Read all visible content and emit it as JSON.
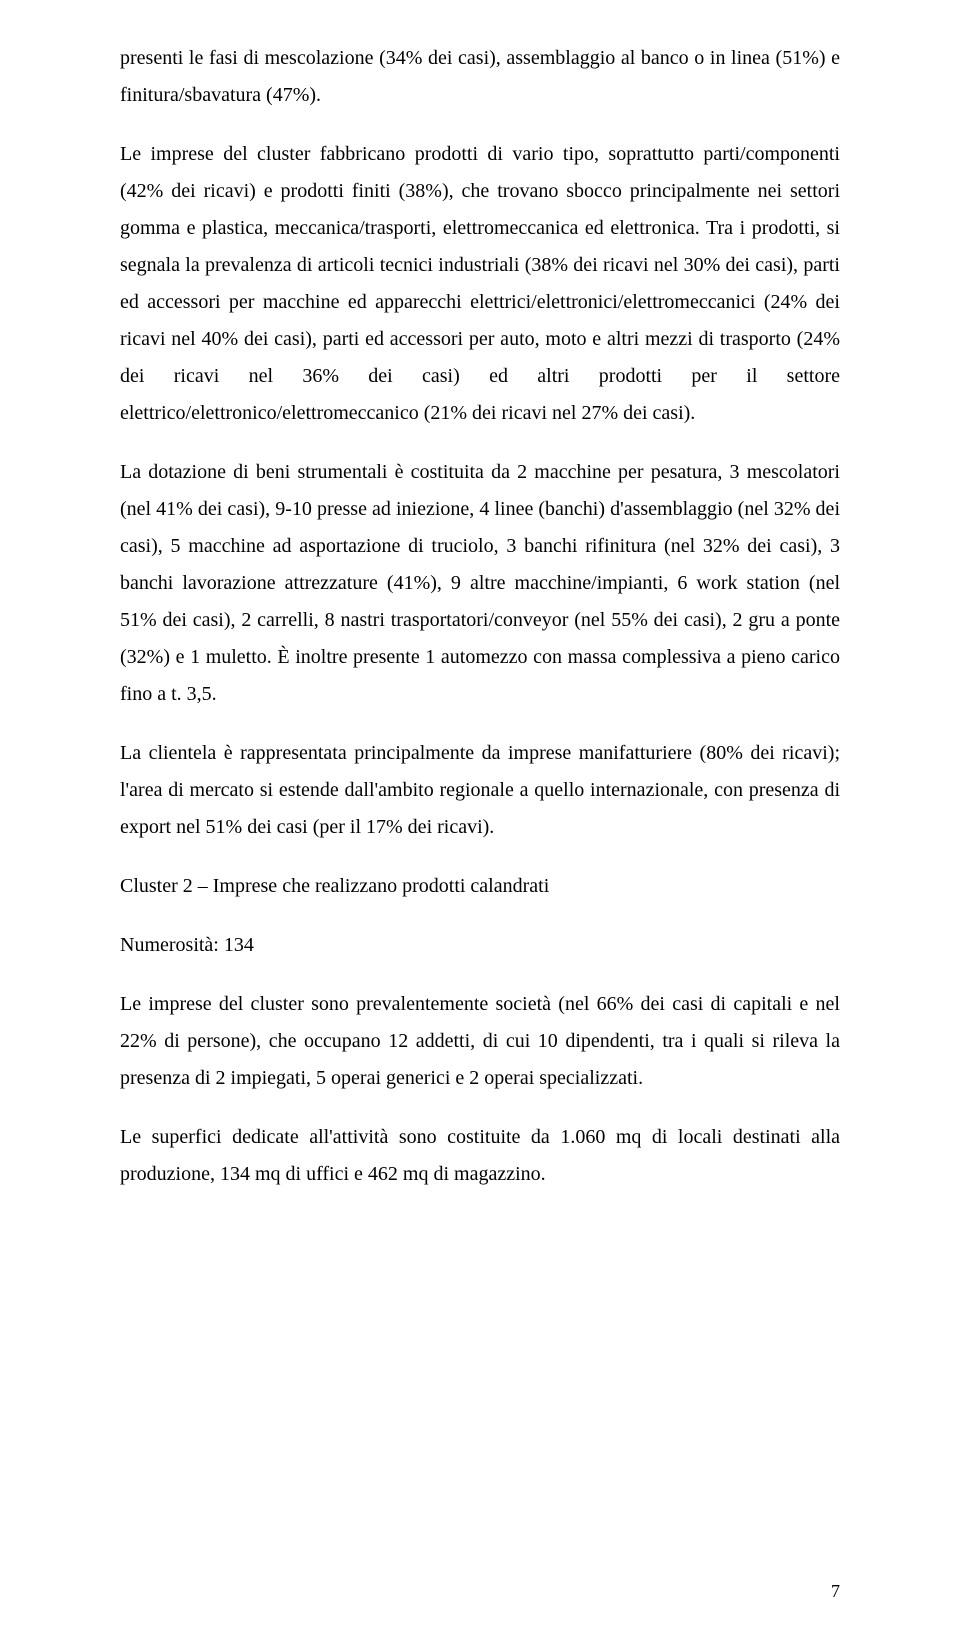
{
  "paragraphs": {
    "p1": "presenti le fasi di mescolazione (34% dei casi), assemblaggio al banco o in linea (51%) e finitura/sbavatura (47%).",
    "p2": "Le imprese del cluster fabbricano prodotti di vario tipo, soprattutto parti/componenti (42% dei ricavi) e prodotti finiti (38%), che trovano sbocco principalmente nei settori gomma e plastica, meccanica/trasporti, elettromeccanica ed elettronica. Tra i prodotti, si segnala la prevalenza di articoli tecnici industriali (38% dei ricavi nel 30% dei casi), parti ed accessori per macchine ed apparecchi elettrici/elettronici/elettromeccanici (24% dei ricavi nel 40% dei casi), parti ed accessori per auto, moto e altri mezzi di trasporto (24% dei ricavi nel 36% dei casi) ed altri prodotti per il settore elettrico/elettronico/elettromeccanico (21% dei ricavi nel 27% dei casi).",
    "p3": "La dotazione di beni strumentali è costituita da 2 macchine per pesatura, 3 mescolatori (nel 41% dei casi), 9-10 presse ad iniezione, 4 linee (banchi) d'assemblaggio (nel 32% dei casi), 5 macchine ad asportazione di truciolo, 3 banchi rifinitura (nel 32% dei casi), 3 banchi lavorazione attrezzature (41%), 9 altre macchine/impianti, 6 work station (nel 51% dei casi), 2 carrelli, 8 nastri trasportatori/conveyor (nel 55% dei casi), 2 gru a ponte (32%) e 1 muletto. È inoltre presente 1 automezzo con massa complessiva a pieno carico fino a t. 3,5.",
    "p4": "La clientela è rappresentata principalmente da imprese manifatturiere (80% dei ricavi); l'area di mercato si estende dall'ambito regionale a quello internazionale, con presenza di export nel 51% dei casi (per il 17% dei ricavi).",
    "h1": "Cluster 2 – Imprese che realizzano prodotti calandrati",
    "h2": "Numerosità: 134",
    "p5": "Le imprese del cluster sono prevalentemente società (nel 66% dei casi di capitali e nel 22% di persone), che occupano 12 addetti, di cui 10 dipendenti, tra i quali si rileva la presenza di 2 impiegati, 5 operai generici e 2 operai specializzati.",
    "p6": "Le superfici dedicate all'attività sono costituite da 1.060 mq di locali destinati alla produzione, 134 mq di uffici e 462 mq di magazzino."
  },
  "pageNumber": "7"
}
